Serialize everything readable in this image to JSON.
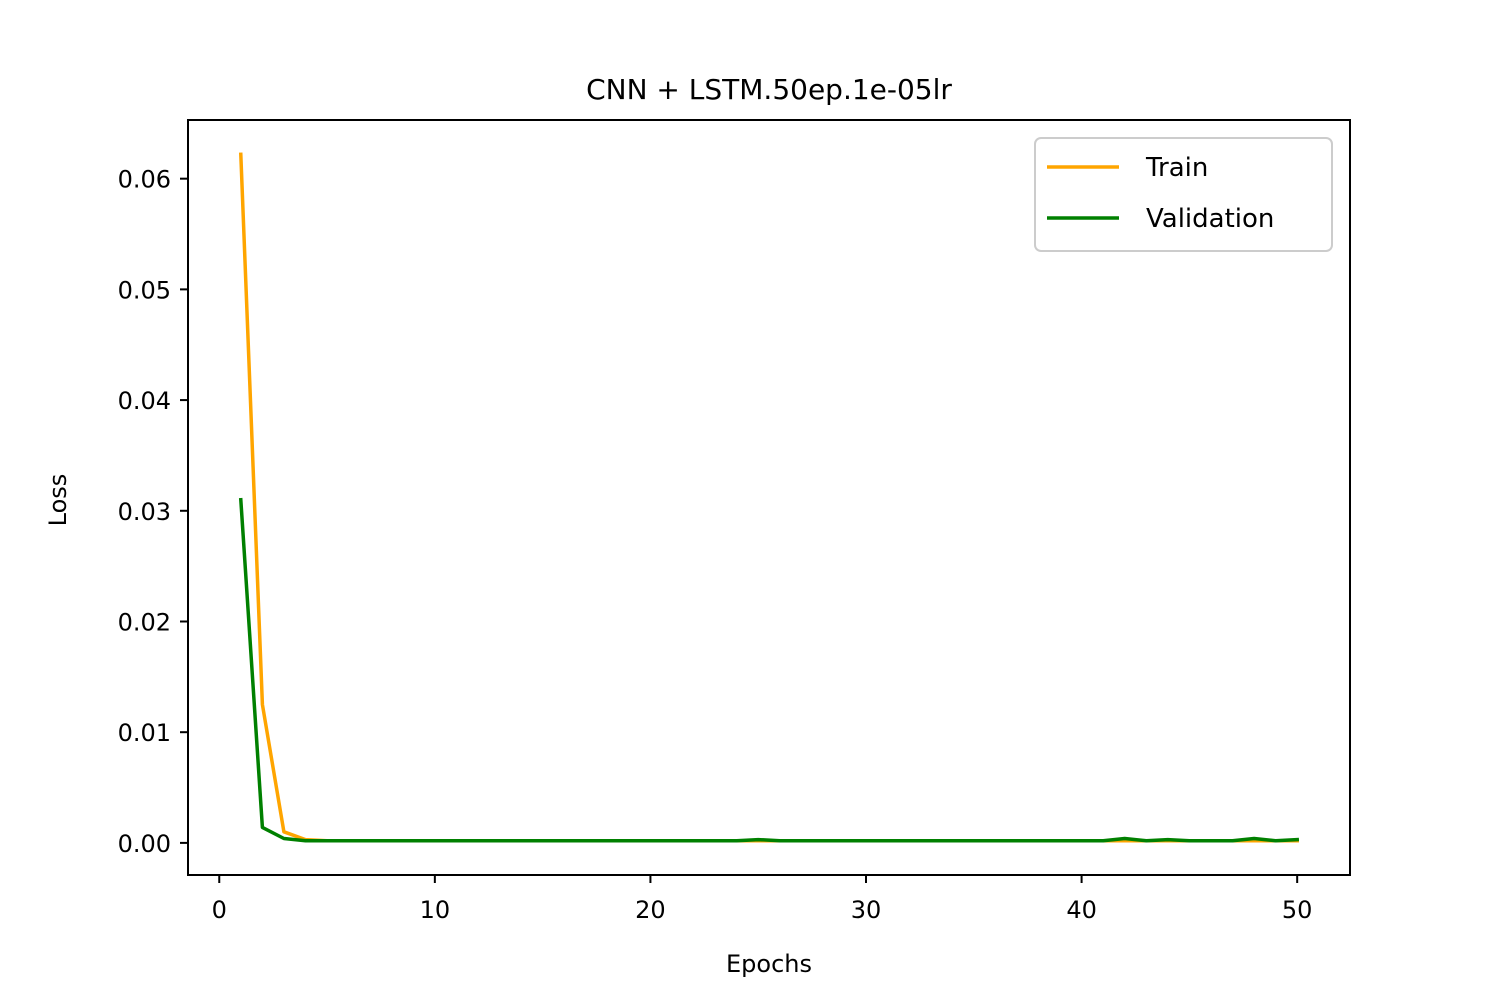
{
  "chart_data": {
    "type": "line",
    "title": "CNN + LSTM.50ep.1e-05lr",
    "xlabel": "Epochs",
    "ylabel": "Loss",
    "xlim": [
      -1.45,
      52.45
    ],
    "ylim": [
      -0.0029,
      0.0653
    ],
    "xticks": [
      0,
      10,
      20,
      30,
      40,
      50
    ],
    "xtick_labels": [
      "0",
      "10",
      "20",
      "30",
      "40",
      "50"
    ],
    "yticks": [
      0.0,
      0.01,
      0.02,
      0.03,
      0.04,
      0.05,
      0.06
    ],
    "ytick_labels": [
      "0.00",
      "0.01",
      "0.02",
      "0.03",
      "0.04",
      "0.05",
      "0.06"
    ],
    "grid": false,
    "legend_position": "top-right",
    "x": [
      1,
      2,
      3,
      4,
      5,
      6,
      7,
      8,
      9,
      10,
      11,
      12,
      13,
      14,
      15,
      16,
      17,
      18,
      19,
      20,
      21,
      22,
      23,
      24,
      25,
      26,
      27,
      28,
      29,
      30,
      31,
      32,
      33,
      34,
      35,
      36,
      37,
      38,
      39,
      40,
      41,
      42,
      43,
      44,
      45,
      46,
      47,
      48,
      49,
      50
    ],
    "series": [
      {
        "name": "Train",
        "color": "#ffa500",
        "values": [
          0.0622,
          0.0125,
          0.001,
          0.0003,
          0.0002,
          0.0002,
          0.0002,
          0.0002,
          0.0002,
          0.0002,
          0.0002,
          0.0002,
          0.0002,
          0.0002,
          0.0002,
          0.0002,
          0.0002,
          0.0002,
          0.0002,
          0.0002,
          0.0002,
          0.0002,
          0.0002,
          0.0002,
          0.0002,
          0.0002,
          0.0002,
          0.0002,
          0.0002,
          0.0002,
          0.0002,
          0.0002,
          0.0002,
          0.0002,
          0.0002,
          0.0002,
          0.0002,
          0.0002,
          0.0002,
          0.0002,
          0.0002,
          0.0002,
          0.0002,
          0.0002,
          0.0002,
          0.0002,
          0.0002,
          0.0002,
          0.0002,
          0.0002
        ]
      },
      {
        "name": "Validation",
        "color": "#008000",
        "values": [
          0.031,
          0.0014,
          0.0004,
          0.0002,
          0.0002,
          0.0002,
          0.0002,
          0.0002,
          0.0002,
          0.0002,
          0.0002,
          0.0002,
          0.0002,
          0.0002,
          0.0002,
          0.0002,
          0.0002,
          0.0002,
          0.0002,
          0.0002,
          0.0002,
          0.0002,
          0.0002,
          0.0002,
          0.0003,
          0.0002,
          0.0002,
          0.0002,
          0.0002,
          0.0002,
          0.0002,
          0.0002,
          0.0002,
          0.0002,
          0.0002,
          0.0002,
          0.0002,
          0.0002,
          0.0002,
          0.0002,
          0.0002,
          0.0004,
          0.0002,
          0.0003,
          0.0002,
          0.0002,
          0.0002,
          0.0004,
          0.0002,
          0.0003
        ]
      }
    ]
  }
}
